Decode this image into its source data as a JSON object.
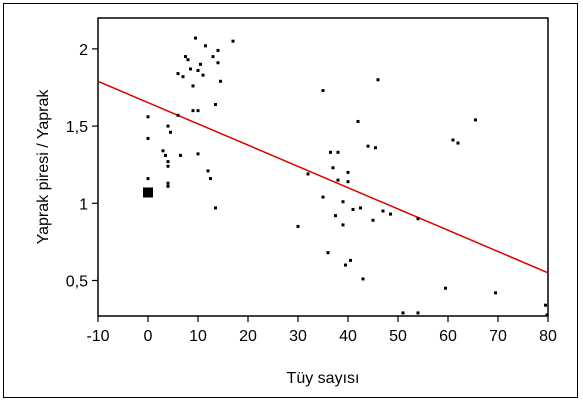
{
  "chart_data": {
    "type": "scatter",
    "xlabel": "Tüy sayısı",
    "ylabel": "Yaprak piresi / Yaprak",
    "xlim": [
      -10,
      80
    ],
    "ylim": [
      0.27,
      2.2
    ],
    "x_ticks": [
      -10,
      0,
      10,
      20,
      30,
      40,
      50,
      60,
      70,
      80
    ],
    "x_tick_labels": [
      "-10",
      "0",
      "10",
      "20",
      "30",
      "40",
      "50",
      "60",
      "70",
      "80"
    ],
    "y_ticks": [
      0.5,
      1,
      1.5,
      2
    ],
    "y_tick_labels": [
      "0,5",
      "1",
      "1,5",
      "2"
    ],
    "grid": false,
    "regression_line": {
      "x": [
        -10,
        80
      ],
      "y": [
        1.79,
        0.55
      ],
      "color": "#dd0000"
    },
    "highlight_point": {
      "x": 0,
      "y": 1.07
    },
    "points": [
      [
        0,
        1.56
      ],
      [
        0,
        1.42
      ],
      [
        0,
        1.16
      ],
      [
        3,
        1.34
      ],
      [
        3.5,
        1.31
      ],
      [
        4,
        1.27
      ],
      [
        4,
        1.24
      ],
      [
        4,
        1.5
      ],
      [
        4.5,
        1.46
      ],
      [
        4,
        1.13
      ],
      [
        4,
        1.11
      ],
      [
        6,
        1.84
      ],
      [
        6,
        1.57
      ],
      [
        6.5,
        1.31
      ],
      [
        7,
        1.82
      ],
      [
        7.5,
        1.95
      ],
      [
        8,
        1.93
      ],
      [
        8.5,
        1.87
      ],
      [
        9,
        1.76
      ],
      [
        9,
        1.6
      ],
      [
        9.5,
        2.07
      ],
      [
        10,
        1.86
      ],
      [
        10,
        1.6
      ],
      [
        10,
        1.32
      ],
      [
        10.5,
        1.9
      ],
      [
        11,
        1.83
      ],
      [
        11.5,
        2.02
      ],
      [
        12,
        1.21
      ],
      [
        12.5,
        1.16
      ],
      [
        13,
        1.95
      ],
      [
        13.5,
        1.64
      ],
      [
        13.5,
        0.97
      ],
      [
        14,
        1.99
      ],
      [
        14,
        1.91
      ],
      [
        14.5,
        1.79
      ],
      [
        17,
        2.05
      ],
      [
        30,
        0.85
      ],
      [
        32,
        1.19
      ],
      [
        35,
        1.73
      ],
      [
        35,
        1.04
      ],
      [
        36,
        0.68
      ],
      [
        36.5,
        1.33
      ],
      [
        37,
        1.23
      ],
      [
        37.5,
        0.92
      ],
      [
        38,
        1.33
      ],
      [
        38,
        1.15
      ],
      [
        39,
        1.01
      ],
      [
        39,
        0.86
      ],
      [
        39.5,
        0.6
      ],
      [
        40,
        1.2
      ],
      [
        40,
        1.14
      ],
      [
        40.5,
        0.63
      ],
      [
        41,
        0.96
      ],
      [
        42,
        1.53
      ],
      [
        42.5,
        0.97
      ],
      [
        43,
        0.51
      ],
      [
        44,
        1.37
      ],
      [
        45,
        0.89
      ],
      [
        45.5,
        1.36
      ],
      [
        46,
        1.8
      ],
      [
        47,
        0.95
      ],
      [
        48.5,
        0.93
      ],
      [
        51,
        0.29
      ],
      [
        54,
        0.9
      ],
      [
        54,
        0.29
      ],
      [
        59.5,
        0.45
      ],
      [
        61,
        1.41
      ],
      [
        62,
        1.39
      ],
      [
        65.5,
        1.54
      ],
      [
        69.5,
        0.42
      ],
      [
        79.5,
        0.34
      ],
      [
        80,
        0.27
      ]
    ]
  }
}
